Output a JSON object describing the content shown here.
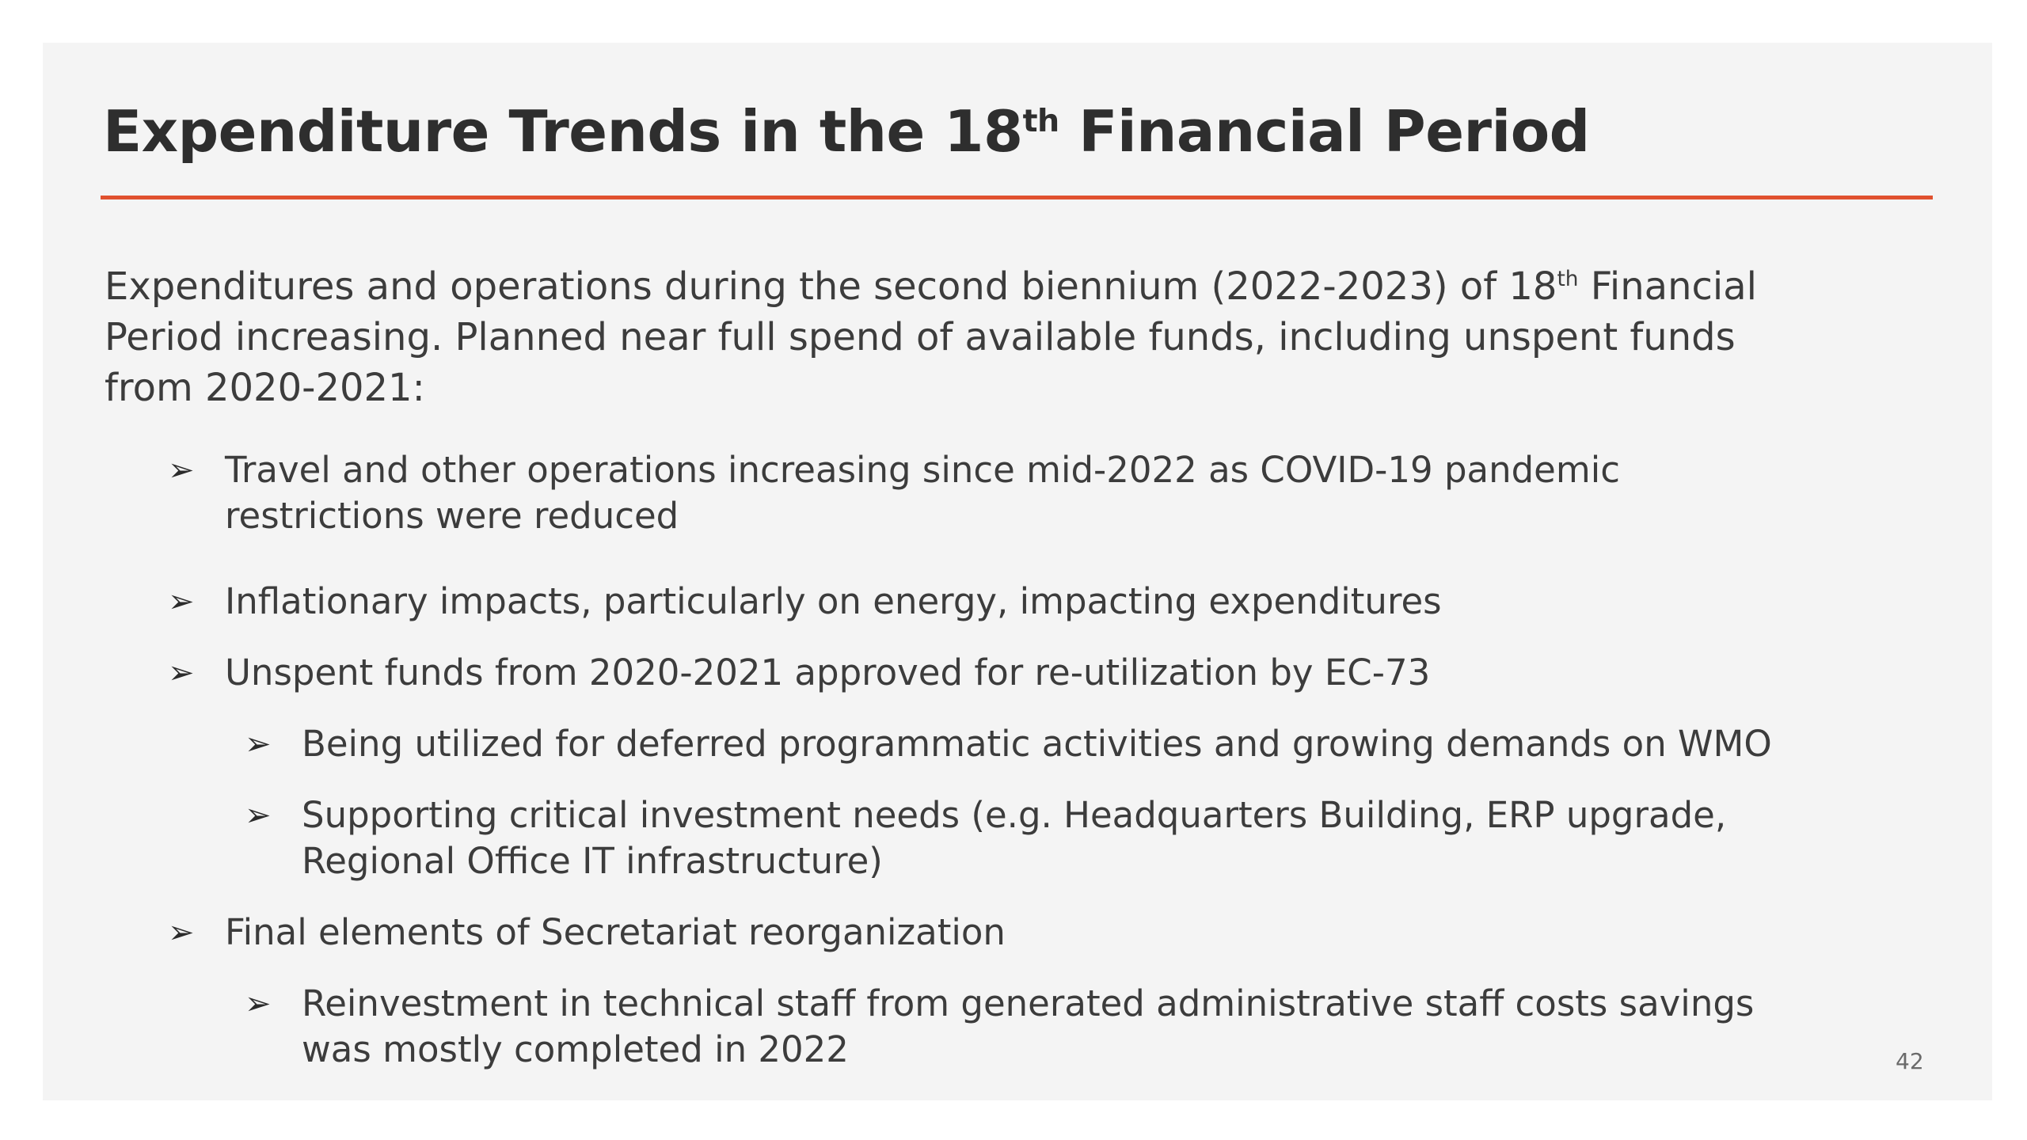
{
  "slide": {
    "title": {
      "prefix": "Expenditure Trends in the 18",
      "sup": "th",
      "suffix": " Financial Period"
    },
    "intro": {
      "part1": "Expenditures and operations during the second biennium (2022-2023) of 18",
      "sup": "th",
      "part2": " Financial Period increasing. Planned near full spend of available funds, including unspent funds from 2020-2021:"
    },
    "bullet_marker": "➢",
    "bullets": [
      {
        "level": 1,
        "text": "Travel and other operations increasing since mid-2022 as COVID-19 pandemic restrictions were reduced"
      },
      {
        "level": 1,
        "text": "Inflationary impacts, particularly on energy, impacting expenditures"
      },
      {
        "level": 1,
        "text": "Unspent funds from 2020-2021 approved for re-utilization by EC-73"
      },
      {
        "level": 2,
        "text": "Being utilized for deferred programmatic activities and growing demands on WMO"
      },
      {
        "level": 2,
        "text": "Supporting critical investment needs (e.g. Headquarters Building, ERP upgrade, Regional Office IT infrastructure)"
      },
      {
        "level": 1,
        "text": "Final elements of Secretariat reorganization"
      },
      {
        "level": 2,
        "text": "Reinvestment in technical staff from generated administrative staff costs savings was mostly completed in 2022"
      }
    ],
    "page_number": "42",
    "accent_color": "#e0512f"
  }
}
